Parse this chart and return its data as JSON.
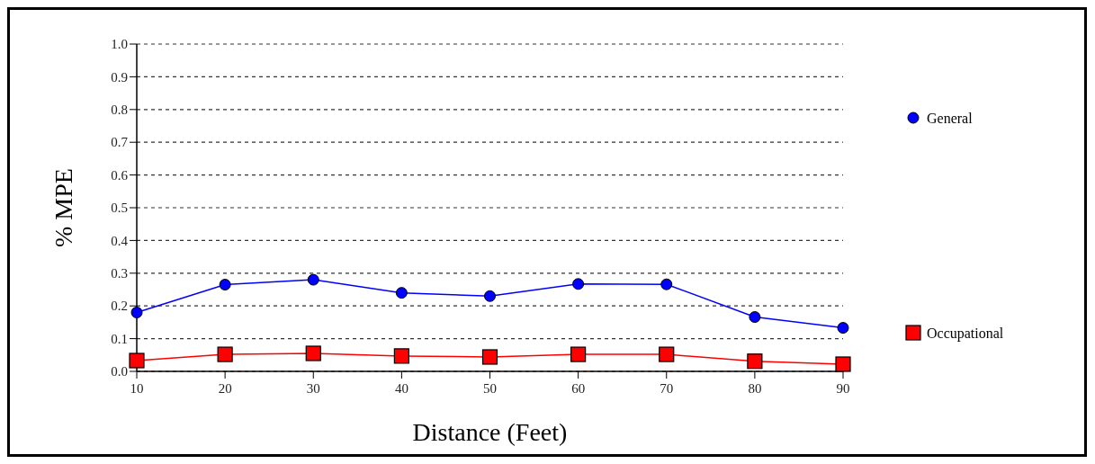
{
  "chart_data": {
    "type": "line",
    "xlabel": "Distance (Feet)",
    "ylabel": "% MPE",
    "x": [
      10,
      20,
      30,
      40,
      50,
      60,
      70,
      80,
      90
    ],
    "series": [
      {
        "name": "General",
        "color": "#0000ff",
        "marker": "circle",
        "values": [
          0.18,
          0.265,
          0.28,
          0.24,
          0.23,
          0.267,
          0.266,
          0.166,
          0.133
        ]
      },
      {
        "name": "Occupational",
        "color": "#ff0000",
        "marker": "square",
        "values": [
          0.033,
          0.052,
          0.055,
          0.047,
          0.044,
          0.052,
          0.052,
          0.031,
          0.022
        ]
      }
    ],
    "xlim": [
      10,
      90
    ],
    "xticks": [
      10,
      20,
      30,
      40,
      50,
      60,
      70,
      80,
      90
    ],
    "ylim": [
      0,
      1
    ],
    "yticks": [
      {
        "value": 0,
        "label": "0.0"
      },
      0.1,
      0.2,
      0.3,
      0.4,
      0.5,
      0.6,
      0.7,
      0.8,
      0.9,
      {
        "value": 1,
        "label": "1.0"
      }
    ],
    "grid": "y",
    "legend": "right",
    "line_style": "solid"
  }
}
